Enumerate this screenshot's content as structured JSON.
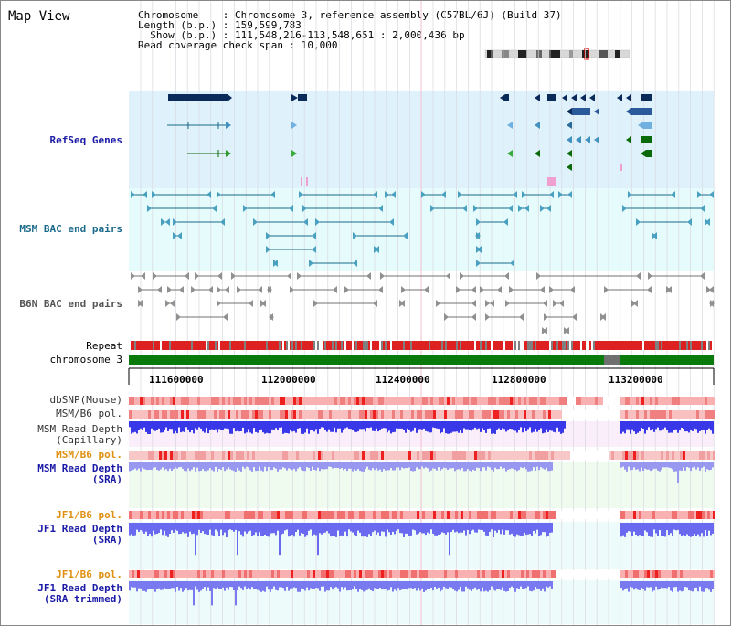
{
  "view": {
    "title": "Map View",
    "info": {
      "chromosome": "Chromosome    : Chromosome 3, reference assembly (C57BL/6J) (Build 37)",
      "length": "Length (b.p.) : 159,599,783",
      "show": "  Show (b.p.) : 111,548,216-113,548,651 : 2,000,436 bp",
      "coverage": "Read coverage check span : 10,000"
    }
  },
  "tracks": {
    "refseq": "RefSeq Genes",
    "msm_bac": "MSM BAC end pairs",
    "b6n_bac": "B6N BAC end pairs",
    "repeat": "Repeat",
    "chromosome": "chromosome 3",
    "dbsnp": "dbSNP(Mouse)",
    "msm_pol": "MSM/B6 pol.",
    "msm_depth_cap": "MSM Read Depth\n(Capillary)",
    "msm_pol2": "MSM/B6 pol.",
    "msm_depth_sra": "MSM Read Depth\n(SRA)",
    "jf1_pol": "JF1/B6 pol.",
    "jf1_depth": "JF1 Read Depth\n(SRA)",
    "jf1_pol2": "JF1/B6 pol.",
    "jf1_depth_trim": "JF1 Read Depth\n(SRA trimmed)"
  },
  "axis": {
    "ticks": [
      "111600000",
      "112000000",
      "112400000",
      "112800000",
      "113200000"
    ]
  },
  "colors": {
    "refseq_bg": "#dff2fb",
    "msm_bg": "#e6fbfb",
    "navy": "#0a2a5a",
    "snp": "#f08080",
    "depth_blue": "#4040f0",
    "depth_light": "#8080f0"
  }
}
